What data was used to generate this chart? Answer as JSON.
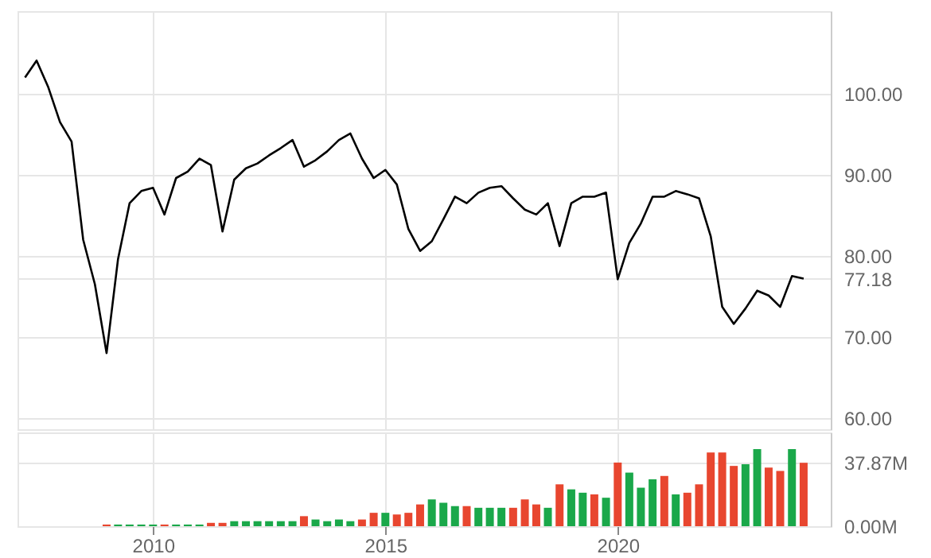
{
  "chart_data": [
    {
      "type": "line",
      "x": [
        "2007-04",
        "2007-07",
        "2007-10",
        "2008-01",
        "2008-04",
        "2008-07",
        "2008-10",
        "2009-01",
        "2009-04",
        "2009-07",
        "2009-10",
        "2010-01",
        "2010-04",
        "2010-07",
        "2010-10",
        "2011-01",
        "2011-04",
        "2011-07",
        "2011-10",
        "2012-01",
        "2012-04",
        "2012-07",
        "2012-10",
        "2013-01",
        "2013-04",
        "2013-07",
        "2013-10",
        "2014-01",
        "2014-04",
        "2014-07",
        "2014-10",
        "2015-01",
        "2015-04",
        "2015-07",
        "2015-10",
        "2016-01",
        "2016-04",
        "2016-07",
        "2016-10",
        "2017-01",
        "2017-04",
        "2017-07",
        "2017-10",
        "2018-01",
        "2018-04",
        "2018-07",
        "2018-10",
        "2019-01",
        "2019-04",
        "2019-07",
        "2019-10",
        "2020-01",
        "2020-04",
        "2020-07",
        "2020-10",
        "2021-01",
        "2021-04",
        "2021-07",
        "2021-10",
        "2022-01",
        "2022-04",
        "2022-07",
        "2022-10",
        "2023-01",
        "2023-04",
        "2023-07",
        "2023-10",
        "2024-01"
      ],
      "series": [
        {
          "color": "#000000",
          "values": [
            102.0,
            104.1,
            100.8,
            96.5,
            94.1,
            82.0,
            76.5,
            68.0,
            79.6,
            86.5,
            88.0,
            88.4,
            85.1,
            89.6,
            90.4,
            92.0,
            91.2,
            83.0,
            89.4,
            90.8,
            91.4,
            92.4,
            93.3,
            94.3,
            91.0,
            91.8,
            92.9,
            94.3,
            95.1,
            92.0,
            89.6,
            90.6,
            88.8,
            83.3,
            80.6,
            81.8,
            84.5,
            87.3,
            86.5,
            87.8,
            88.4,
            88.6,
            87.1,
            85.7,
            85.1,
            86.5,
            81.2,
            86.5,
            87.3,
            87.3,
            87.8,
            77.1,
            81.6,
            84.0,
            87.3,
            87.3,
            88.0,
            87.6,
            87.1,
            82.4,
            73.7,
            71.6,
            73.5,
            75.7,
            75.1,
            73.7,
            77.5,
            77.18
          ]
        }
      ],
      "xlim": [
        "2007-02",
        "2024-08"
      ],
      "xticks": [
        "2010",
        "2015",
        "2020"
      ],
      "ylim": [
        58.6,
        110.2
      ],
      "yticks": [
        {
          "value": 60,
          "label": "60.00"
        },
        {
          "value": 70,
          "label": "70.00"
        },
        {
          "value": 77.18,
          "label": "77.18"
        },
        {
          "value": 80,
          "label": "80.00"
        },
        {
          "value": 90,
          "label": "90.00"
        },
        {
          "value": 100,
          "label": "100.00"
        }
      ],
      "grid": true,
      "tick_labels": "y"
    },
    {
      "type": "bar",
      "x": [
        "2009-01",
        "2009-04",
        "2009-07",
        "2009-10",
        "2010-01",
        "2010-04",
        "2010-07",
        "2010-10",
        "2011-01",
        "2011-04",
        "2011-07",
        "2011-10",
        "2012-01",
        "2012-04",
        "2012-07",
        "2012-10",
        "2013-01",
        "2013-04",
        "2013-07",
        "2013-10",
        "2014-01",
        "2014-04",
        "2014-07",
        "2014-10",
        "2015-01",
        "2015-04",
        "2015-07",
        "2015-10",
        "2016-01",
        "2016-04",
        "2016-07",
        "2016-10",
        "2017-01",
        "2017-04",
        "2017-07",
        "2017-10",
        "2018-01",
        "2018-04",
        "2018-07",
        "2018-10",
        "2019-01",
        "2019-04",
        "2019-07",
        "2019-10",
        "2020-01",
        "2020-04",
        "2020-07",
        "2020-10",
        "2021-01",
        "2021-04",
        "2021-07",
        "2021-10",
        "2022-01",
        "2022-04",
        "2022-07",
        "2022-10",
        "2023-01",
        "2023-04",
        "2023-07",
        "2023-10",
        "2024-01"
      ],
      "values": [
        1,
        1,
        1,
        1,
        1,
        1,
        1,
        1,
        1,
        2,
        2,
        3,
        3,
        3,
        3,
        3,
        3,
        6,
        4,
        3,
        4,
        3,
        4,
        8,
        8,
        7,
        8,
        13,
        16,
        14,
        12,
        12,
        11,
        11,
        11,
        11,
        16,
        13,
        11,
        25,
        22,
        20,
        19,
        17,
        38,
        32,
        23,
        28,
        30,
        19,
        20,
        25,
        44,
        44,
        36,
        37,
        46,
        35,
        33,
        46,
        37.87
      ],
      "colors": [
        "#e8462f",
        "#1aa84a",
        "#1aa84a",
        "#1aa84a",
        "#1aa84a",
        "#e8462f",
        "#1aa84a",
        "#1aa84a",
        "#1aa84a",
        "#e8462f",
        "#e8462f",
        "#1aa84a",
        "#1aa84a",
        "#1aa84a",
        "#1aa84a",
        "#1aa84a",
        "#1aa84a",
        "#e8462f",
        "#1aa84a",
        "#1aa84a",
        "#1aa84a",
        "#1aa84a",
        "#e8462f",
        "#e8462f",
        "#1aa84a",
        "#e8462f",
        "#e8462f",
        "#e8462f",
        "#1aa84a",
        "#1aa84a",
        "#1aa84a",
        "#e8462f",
        "#1aa84a",
        "#1aa84a",
        "#1aa84a",
        "#e8462f",
        "#e8462f",
        "#e8462f",
        "#1aa84a",
        "#e8462f",
        "#1aa84a",
        "#1aa84a",
        "#e8462f",
        "#1aa84a",
        "#e8462f",
        "#1aa84a",
        "#1aa84a",
        "#1aa84a",
        "#e8462f",
        "#1aa84a",
        "#e8462f",
        "#e8462f",
        "#e8462f",
        "#e8462f",
        "#e8462f",
        "#1aa84a",
        "#1aa84a",
        "#e8462f",
        "#e8462f",
        "#1aa84a",
        "#e8462f"
      ],
      "xlim": [
        "2007-02",
        "2024-08"
      ],
      "xticks": [
        "2010",
        "2015",
        "2020"
      ],
      "ylim": [
        0,
        56
      ],
      "yticks": [
        {
          "value": 0,
          "label": "0.00M"
        },
        {
          "value": 37.87,
          "label": "37.87M"
        }
      ],
      "grid": true
    }
  ]
}
